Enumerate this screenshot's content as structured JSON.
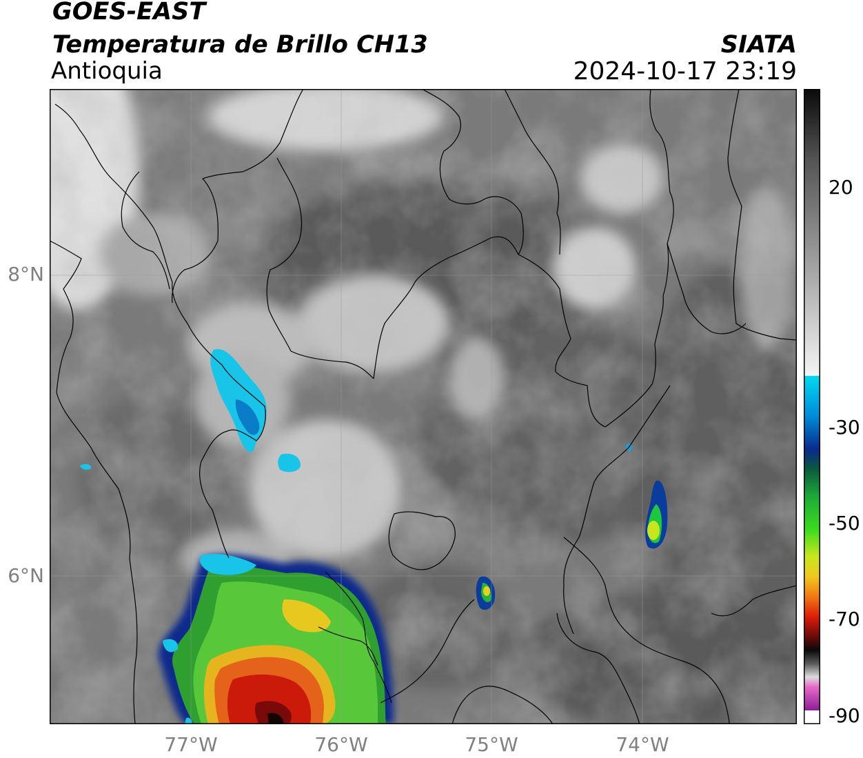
{
  "title": {
    "line1": "GOES-EAST",
    "line2": "Temperatura de Brillo CH13",
    "region": "Antioquia",
    "brand": "SIATA",
    "datetime": "2024-10-17 23:19"
  },
  "map": {
    "lon_range": [
      -77.95,
      -72.98
    ],
    "lat_range": [
      5.0,
      9.0
    ],
    "lon_ticks": [
      -77,
      -76,
      -75,
      -74
    ],
    "lat_ticks": [
      6,
      8
    ],
    "lon_labels": [
      "77°W",
      "76°W",
      "75°W",
      "74°W"
    ],
    "lat_labels": [
      "6°N",
      "8°N"
    ],
    "gridlines": true
  },
  "colorbar": {
    "range": [
      -90,
      40
    ],
    "ticks": [
      20,
      -30,
      -50,
      -70,
      -90
    ],
    "labels": [
      "20",
      "-30",
      "-50",
      "-70",
      "-90"
    ],
    "colors": {
      "warm_gray": "#3a3a3a",
      "cloud_white": "#f2f2f2",
      "cyan": "#00ccee",
      "dark_blue": "#0a1e8c",
      "green": "#1ec83c",
      "yellow": "#f0e61e",
      "red": "#dc1e0a",
      "black": "#0a0a0a",
      "magenta": "#c83cb4",
      "purple": "#8c1e96"
    }
  },
  "storms": [
    {
      "type": "convective-core",
      "lon": -76.45,
      "lat": 5.2,
      "min_temp": -75
    },
    {
      "type": "convective",
      "lon": -75.0,
      "lat": 5.9,
      "min_temp": -48
    },
    {
      "type": "convective",
      "lon": -73.93,
      "lat": 6.35,
      "min_temp": -45
    },
    {
      "type": "cloud-top",
      "lon": -76.6,
      "lat": 7.2,
      "min_temp": -28
    }
  ]
}
